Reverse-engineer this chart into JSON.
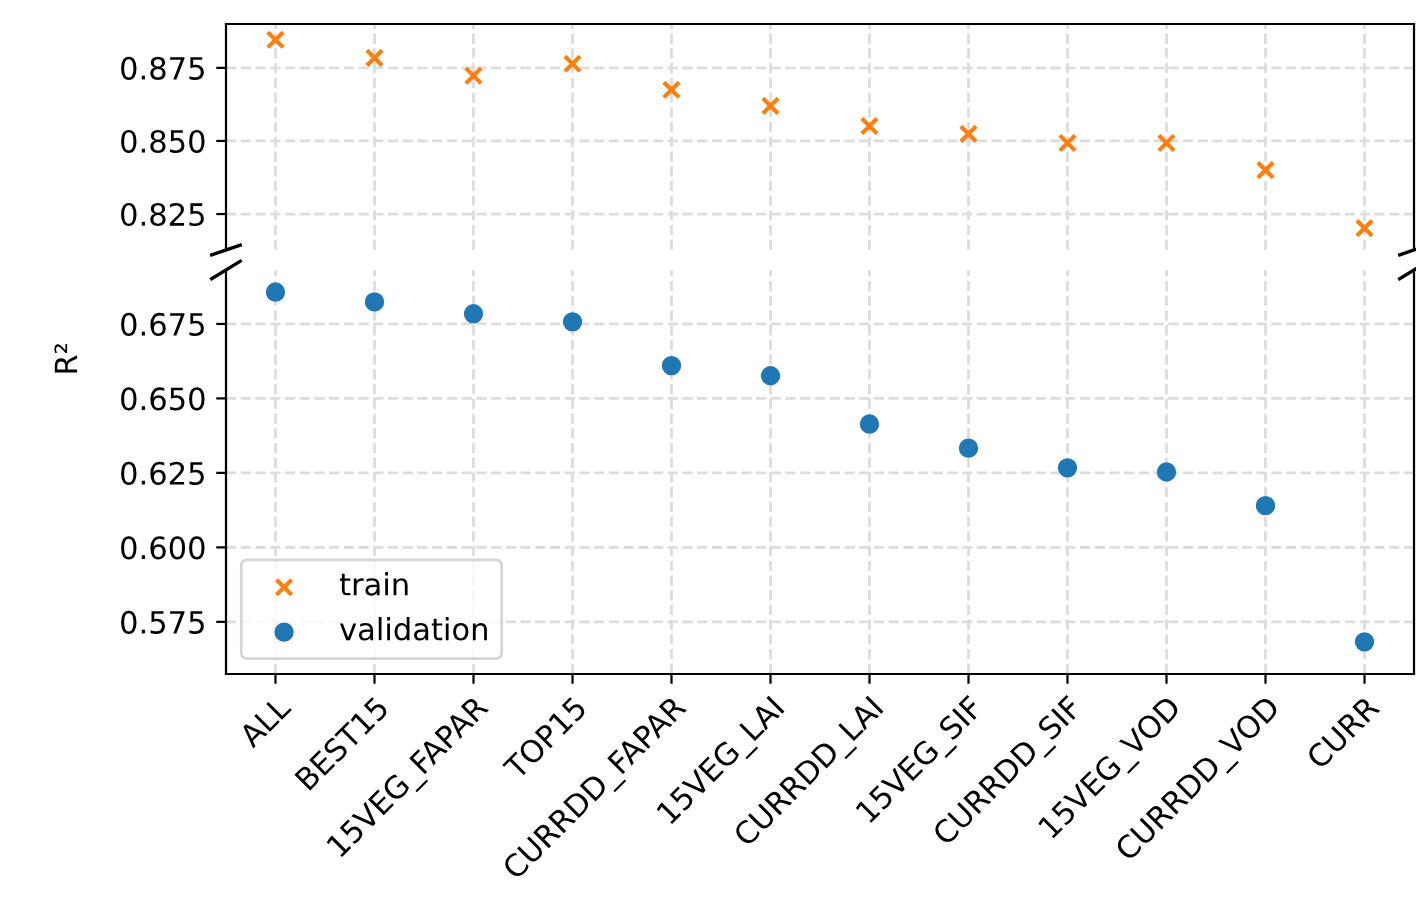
{
  "chart_data": [
    {
      "type": "scatter",
      "categories": [
        null,
        null,
        null,
        null,
        null,
        null,
        null,
        null,
        null,
        null,
        null,
        null
      ],
      "series": [
        {
          "name": "train",
          "color": "#ff7f0e",
          "marker": "cross",
          "values": [
            0.8846,
            0.8784,
            0.8723,
            0.8764,
            0.8675,
            0.862,
            0.8551,
            0.8524,
            0.8493,
            0.8493,
            0.84,
            0.8202
          ]
        }
      ],
      "ylim": [
        0.8127,
        0.89
      ],
      "yticks": [
        0.825,
        {
          "value": 0.85,
          "label": "0.850"
        },
        0.875
      ],
      "grid": true,
      "tick_labels": "y"
    },
    {
      "type": "scatter",
      "categories": [
        "ALL",
        "BEST15",
        "15VEG_FAPAR",
        "TOP15",
        "CURRDD_FAPAR",
        "15VEG_LAI",
        "CURRDD_LAI",
        "15VEG_SIF",
        "CURRDD_SIF",
        "15VEG_VOD",
        "CURRDD_VOD",
        "CURR"
      ],
      "series": [
        {
          "name": "validation",
          "color": "#1f77b4",
          "marker": "circle",
          "values": [
            0.6857,
            0.6824,
            0.6784,
            0.6757,
            0.661,
            0.6576,
            0.6414,
            0.6333,
            0.6267,
            0.6253,
            0.614,
            0.5683
          ]
        }
      ],
      "ylim": [
        0.5575,
        0.6931
      ],
      "yticks": [
        0.575,
        {
          "value": 0.6,
          "label": "0.600"
        },
        0.625,
        {
          "value": 0.65,
          "label": "0.650"
        },
        0.675
      ],
      "ylabel": "R²",
      "grid": true,
      "legend": "bottom left"
    }
  ]
}
